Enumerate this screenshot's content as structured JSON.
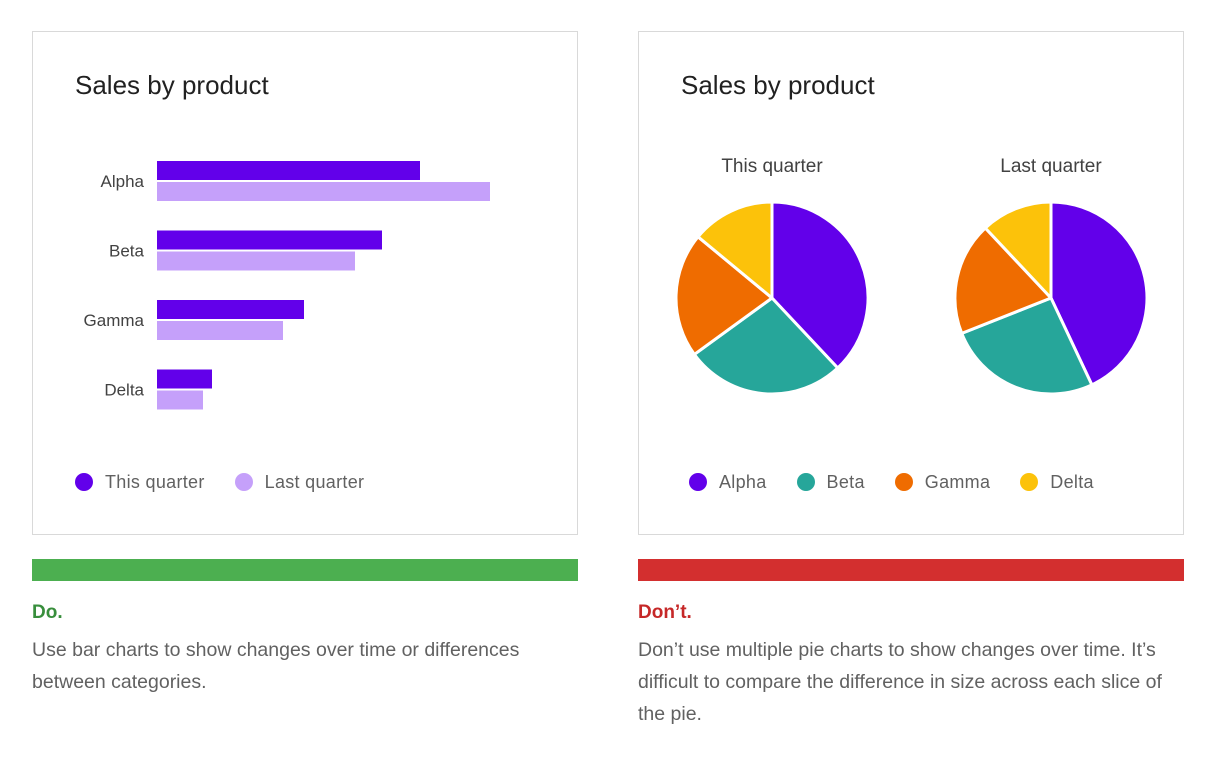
{
  "colors": {
    "this_quarter": "#6200ea",
    "last_quarter": "#c5a0fa",
    "alpha": "#6200ea",
    "beta": "#26a69a",
    "gamma": "#ef6c00",
    "delta": "#fcc20a",
    "do": "#4caf50",
    "do_text": "#388e3c",
    "dont": "#d32f2f",
    "dont_text": "#c62828"
  },
  "left": {
    "title": "Sales by product",
    "legend": [
      {
        "label": "This quarter",
        "color": "#6200ea"
      },
      {
        "label": "Last quarter",
        "color": "#c5a0fa"
      }
    ],
    "verdict": "Do.",
    "description": "Use bar charts to show changes over time or differences between categories."
  },
  "right": {
    "title": "Sales by product",
    "legend": [
      {
        "label": "Alpha",
        "color": "#6200ea"
      },
      {
        "label": "Beta",
        "color": "#26a69a"
      },
      {
        "label": "Gamma",
        "color": "#ef6c00"
      },
      {
        "label": "Delta",
        "color": "#fcc20a"
      }
    ],
    "verdict": "Don’t.",
    "description": "Don’t use multiple pie charts to show changes over time. It’s difficult to compare the difference in size across each slice of the pie."
  },
  "chart_data": [
    {
      "type": "bar",
      "orientation": "horizontal",
      "title": "Sales by product",
      "categories": [
        "Alpha",
        "Beta",
        "Gamma",
        "Delta"
      ],
      "series": [
        {
          "name": "This quarter",
          "values": [
            263,
            225,
            147,
            55
          ]
        },
        {
          "name": "Last quarter",
          "values": [
            333,
            198,
            126,
            46
          ]
        }
      ],
      "axis_visible": false,
      "grid": false,
      "legend_position": "bottom-left"
    },
    {
      "type": "pie",
      "title": "This quarter",
      "labels": [
        "Alpha",
        "Beta",
        "Gamma",
        "Delta"
      ],
      "values": [
        38,
        27,
        21,
        14
      ]
    },
    {
      "type": "pie",
      "title": "Last quarter",
      "labels": [
        "Alpha",
        "Beta",
        "Gamma",
        "Delta"
      ],
      "values": [
        43,
        26,
        19,
        12
      ]
    }
  ]
}
